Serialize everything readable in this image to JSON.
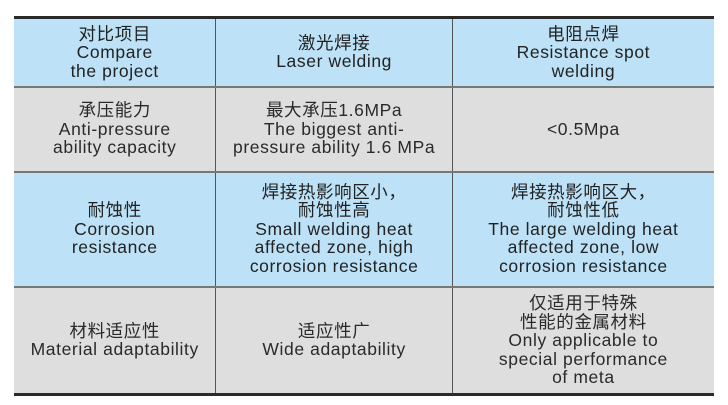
{
  "colors": {
    "header_bg": "#bde2f7",
    "gray_row_bg": "#dedede",
    "blue_row_bg": "#bde2f7"
  },
  "rows": [
    {
      "cells": [
        [
          "对比项目",
          "Compare",
          "the project"
        ],
        [
          "激光焊接",
          "Laser welding"
        ],
        [
          "电阻点焊",
          "Resistance spot",
          "welding"
        ]
      ]
    },
    {
      "cells": [
        [
          "承压能力",
          "Anti-pressure",
          "ability capacity"
        ],
        [
          "最大承压1.6MPa",
          "The biggest anti-",
          "pressure ability 1.6 MPa"
        ],
        [
          "<0.5Mpa"
        ]
      ]
    },
    {
      "cells": [
        [
          "耐蚀性",
          "Corrosion",
          "resistance"
        ],
        [
          "焊接热影响区小，",
          "耐蚀性高",
          "Small welding heat",
          "affected zone, high",
          "corrosion resistance"
        ],
        [
          "焊接热影响区大，",
          "耐蚀性低",
          "The large welding heat",
          "affected zone, low",
          "corrosion resistance"
        ]
      ]
    },
    {
      "cells": [
        [
          "材料适应性",
          "Material adaptability"
        ],
        [
          "适应性广",
          "Wide adaptability"
        ],
        [
          "仅适用于特殊",
          "性能的金属材料",
          "Only applicable to",
          "special performance",
          "of meta"
        ]
      ]
    }
  ]
}
